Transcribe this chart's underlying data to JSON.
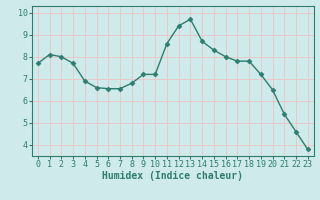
{
  "x": [
    0,
    1,
    2,
    3,
    4,
    5,
    6,
    7,
    8,
    9,
    10,
    11,
    12,
    13,
    14,
    15,
    16,
    17,
    18,
    19,
    20,
    21,
    22,
    23
  ],
  "y": [
    7.7,
    8.1,
    8.0,
    7.7,
    6.9,
    6.6,
    6.55,
    6.55,
    6.8,
    7.2,
    7.2,
    8.6,
    9.4,
    9.7,
    8.7,
    8.3,
    8.0,
    7.8,
    7.8,
    7.2,
    6.5,
    5.4,
    4.6,
    3.8
  ],
  "line_color": "#2e7d6e",
  "marker": "D",
  "markersize": 2.5,
  "linewidth": 1.0,
  "xlabel": "Humidex (Indice chaleur)",
  "xlim": [
    -0.5,
    23.5
  ],
  "ylim": [
    3.5,
    10.3
  ],
  "yticks": [
    4,
    5,
    6,
    7,
    8,
    9,
    10
  ],
  "xticks": [
    0,
    1,
    2,
    3,
    4,
    5,
    6,
    7,
    8,
    9,
    10,
    11,
    12,
    13,
    14,
    15,
    16,
    17,
    18,
    19,
    20,
    21,
    22,
    23
  ],
  "bg_color": "#ceeaea",
  "grid_color": "#e8c8c8",
  "tick_color": "#2e7d6e",
  "label_color": "#2e7d6e",
  "xlabel_fontsize": 7,
  "tick_fontsize": 6
}
